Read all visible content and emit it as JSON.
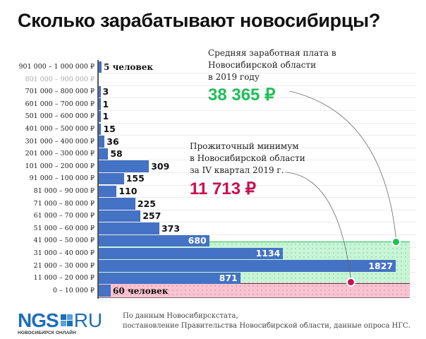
{
  "title": "Сколько зарабатывают новосибирцы?",
  "colors": {
    "bar": "#4472c4",
    "green": "#1fbf57",
    "red": "#c8104e",
    "green_zone": "#c7f5d6",
    "pink_zone": "#f9c3d2",
    "logo_blue": "#1d6fb8"
  },
  "chart_data": {
    "type": "bar",
    "orientation": "horizontal",
    "title": "Сколько зарабатывают новосибирцы?",
    "xlabel": "",
    "ylabel": "",
    "unit": "человек",
    "categories": [
      "901 000 – 1 000 000 ₽",
      "801 000 – 900 000 ₽",
      "701 000 – 800 000 ₽",
      "601 000 – 700 000 ₽",
      "501 000 – 600 000 ₽",
      "401 000 – 500 000 ₽",
      "301 000 – 400 000 ₽",
      "201 000 – 300 000 ₽",
      "101 000 – 200 000 ₽",
      "91 000 – 100 000 ₽",
      "81 000 – 90 000 ₽",
      "71 000 – 80 000 ₽",
      "61 000 – 70 000 ₽",
      "51 000 – 60 000 ₽",
      "41 000 – 50 000 ₽",
      "31 000 – 40 000 ₽",
      "21 000 – 30 000 ₽",
      "11 000 – 20 000 ₽",
      "0 – 10 000 ₽"
    ],
    "values": [
      5,
      0,
      3,
      1,
      1,
      15,
      36,
      58,
      309,
      155,
      110,
      225,
      257,
      373,
      680,
      1134,
      1827,
      871,
      60
    ],
    "value_labels": [
      "5 человек",
      "",
      "3",
      "1",
      "1",
      "15",
      "36",
      "58",
      "309",
      "155",
      "110",
      "225",
      "257",
      "373",
      "680",
      "1134",
      "1827",
      "871",
      "60 человек"
    ],
    "annotations": [
      {
        "label": "Средняя заработная плата в Новосибирской области в 2019 году",
        "value": "38 365 ₽",
        "color": "#1fbf57"
      },
      {
        "label": "Прожиточный минимум в Новосибирской области за IV квартал 2019 г.",
        "value": "11 713 ₽",
        "color": "#c8104e"
      }
    ],
    "grid": true,
    "legend": null
  },
  "rows": [
    {
      "label": "901 000 – 1 000 000 ₽",
      "value": "5 человек",
      "muted": false
    },
    {
      "label": "801 000 – 900 000 ₽",
      "value": "",
      "muted": true
    },
    {
      "label": "701 000 – 800 000 ₽",
      "value": "3"
    },
    {
      "label": "601 000 – 700 000 ₽",
      "value": "1"
    },
    {
      "label": "501 000 – 600 000 ₽",
      "value": "1"
    },
    {
      "label": "401 000 – 500 000 ₽",
      "value": "15"
    },
    {
      "label": "301 000 – 400 000 ₽",
      "value": "36"
    },
    {
      "label": "201 000 – 300 000 ₽",
      "value": "58"
    },
    {
      "label": "101 000 – 200 000 ₽",
      "value": "309"
    },
    {
      "label": "91 000 – 100 000 ₽",
      "value": "155"
    },
    {
      "label": "81 000 – 90 000 ₽",
      "value": "110"
    },
    {
      "label": "71 000 – 80 000 ₽",
      "value": "225"
    },
    {
      "label": "61 000 – 70 000 ₽",
      "value": "257"
    },
    {
      "label": "51 000 – 60 000 ₽",
      "value": "373"
    },
    {
      "label": "41 000 – 50 000 ₽",
      "value": "680"
    },
    {
      "label": "31 000 – 40 000 ₽",
      "value": "1134"
    },
    {
      "label": "21 000 – 30 000 ₽",
      "value": "1827"
    },
    {
      "label": "11 000 – 20 000 ₽",
      "value": "871"
    },
    {
      "label": "0 – 10 000 ₽",
      "value": "60 человек"
    }
  ],
  "annotation_salary": {
    "line1": "Средняя заработная плата в",
    "line2": "Новосибирской области",
    "line3": "в 2019 году",
    "value": "38 365 ₽"
  },
  "annotation_minimum": {
    "line1": "Прожиточный минимум",
    "line2": "в  Новосибирской области",
    "line3": "за IV квартал 2019 г.",
    "value": "11 713 ₽"
  },
  "footer": {
    "logo_ngs": "NGS",
    "logo_ru": "RU",
    "logo_sub": "НОВОСИБИРСК ОНЛАЙН",
    "source_line1": "По данным Новосибирскстата,",
    "source_line2": "постановление Правительства Новосибирской области, данные опроса НГС."
  }
}
